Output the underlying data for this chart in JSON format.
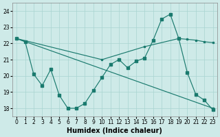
{
  "xlabel": "Humidex (Indice chaleur)",
  "bg_color": "#ceeae8",
  "grid_color": "#a8d4d0",
  "line_color": "#1a7a6e",
  "xlim_min": -0.5,
  "xlim_max": 23.5,
  "ylim_min": 17.5,
  "ylim_max": 24.5,
  "yticks": [
    18,
    19,
    20,
    21,
    22,
    23,
    24
  ],
  "xticks": [
    0,
    1,
    2,
    3,
    4,
    5,
    6,
    7,
    8,
    9,
    10,
    11,
    12,
    13,
    14,
    15,
    16,
    17,
    18,
    19,
    20,
    21,
    22,
    23
  ],
  "line1_x": [
    0,
    1,
    2,
    3,
    4,
    5,
    6,
    7,
    8,
    9,
    10,
    11,
    12,
    13,
    14,
    15,
    16,
    17,
    18,
    19,
    20,
    21,
    22,
    23
  ],
  "line1_y": [
    22.3,
    22.1,
    20.1,
    19.4,
    20.4,
    18.8,
    18.0,
    18.0,
    18.3,
    19.1,
    19.9,
    20.7,
    21.0,
    20.5,
    20.9,
    21.1,
    22.2,
    23.5,
    23.8,
    22.3,
    20.2,
    18.85,
    18.5,
    17.9
  ],
  "line2_x": [
    0,
    23
  ],
  "line2_y": [
    22.3,
    18.0
  ],
  "line3_x": [
    0,
    10,
    15,
    19,
    20,
    21,
    22,
    23
  ],
  "line3_y": [
    22.3,
    21.0,
    21.8,
    22.3,
    22.25,
    22.2,
    22.1,
    22.05
  ],
  "tick_fontsize": 5.5,
  "label_fontsize": 7
}
